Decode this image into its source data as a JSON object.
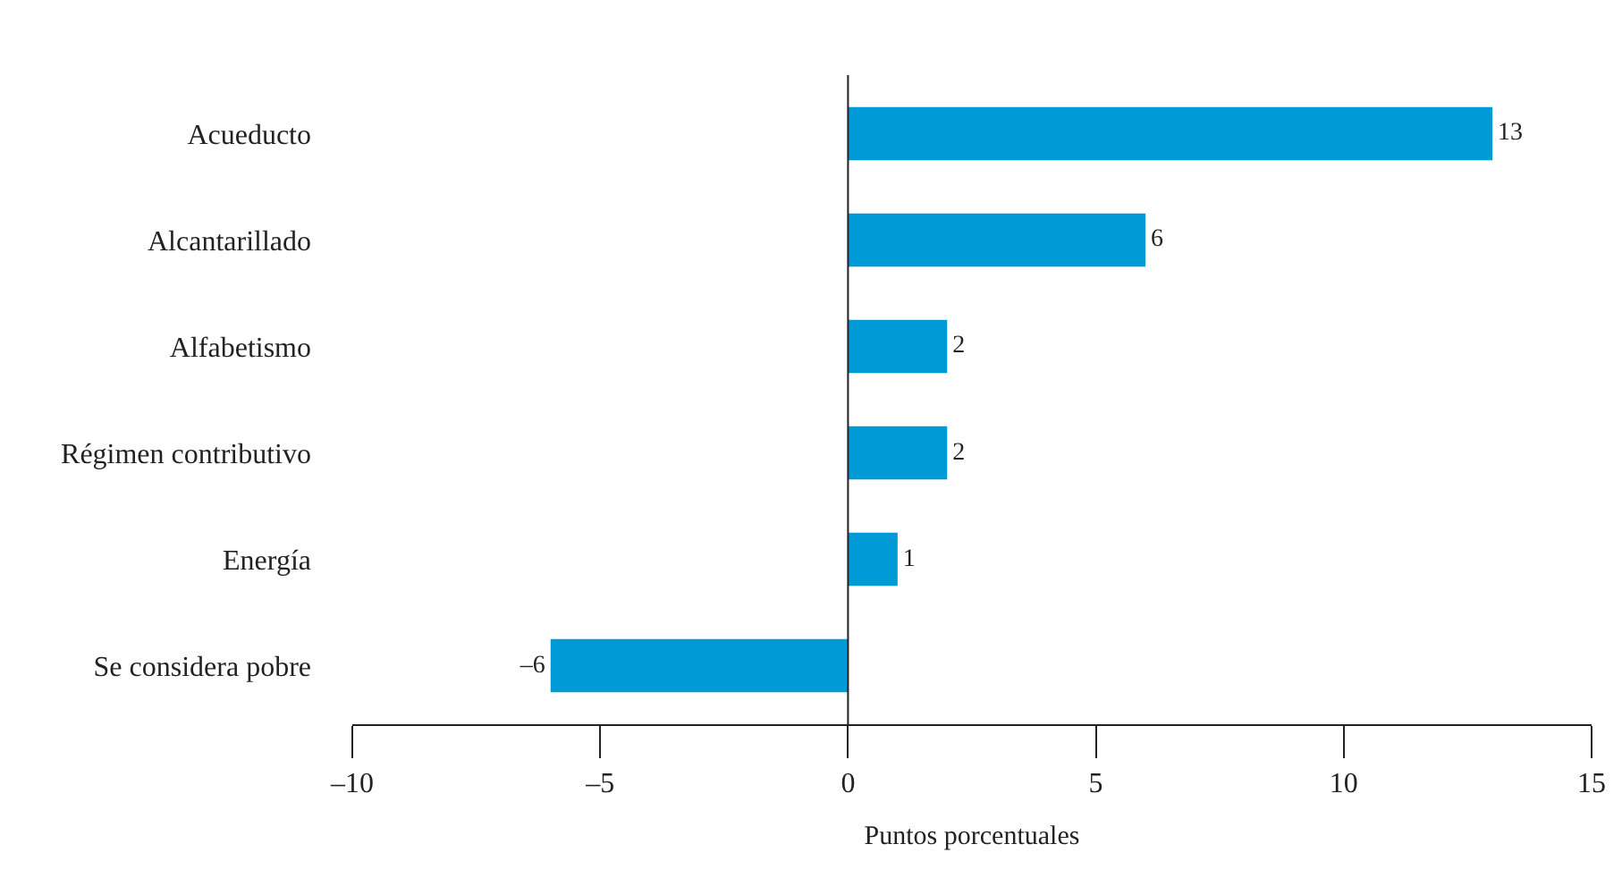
{
  "chart_data": {
    "type": "bar",
    "orientation": "horizontal",
    "xlabel": "Puntos porcentuales",
    "categories": [
      "Acueducto",
      "Alcantarillado",
      "Alfabetismo",
      "Régimen contributivo",
      "Energía",
      "Se considera pobre"
    ],
    "values": [
      13,
      6,
      2,
      2,
      1,
      -6
    ],
    "value_labels": [
      "13",
      "6",
      "2",
      "2",
      "1",
      "–6"
    ],
    "color": "#009ad6",
    "xlim": [
      -10,
      15
    ],
    "xticks": [
      {
        "value": -10,
        "label": "–10"
      },
      {
        "value": -5,
        "label": "–5"
      },
      0,
      5,
      10,
      15
    ],
    "ref_lines": [
      {
        "axis": "x",
        "value": 0
      }
    ]
  }
}
